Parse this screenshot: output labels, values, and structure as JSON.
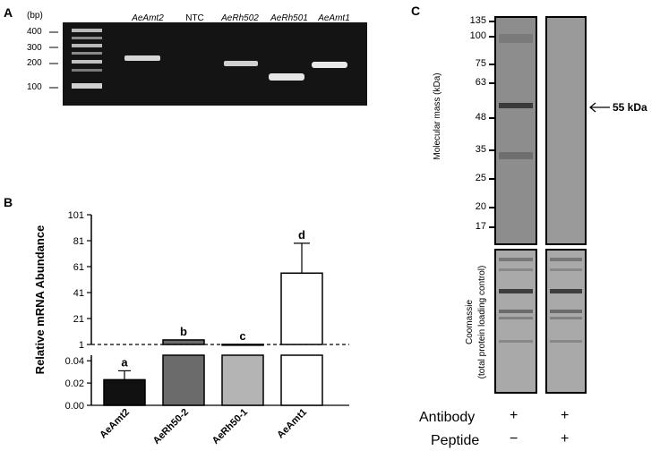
{
  "panels": {
    "a": "A",
    "b": "B",
    "c": "C"
  },
  "gel": {
    "unit": "(bp)",
    "ladder": [
      "400",
      "300",
      "200",
      "100"
    ],
    "lanes": [
      "AeAmt2",
      "NTC",
      "AeRh502",
      "AeRh501",
      "AeAmt1"
    ]
  },
  "chart_data": {
    "type": "bar",
    "categories": [
      "AeAmt2",
      "AeRh50-2",
      "AeRh50-1",
      "AeAmt1"
    ],
    "values": [
      0.023,
      4.5,
      1.1,
      56
    ],
    "errors": [
      0.008,
      0,
      0,
      23
    ],
    "letters": [
      "a",
      "b",
      "c",
      "d"
    ],
    "colors": [
      "#111111",
      "#6b6b6b",
      "#b4b4b4",
      "#ffffff"
    ],
    "ylabel": "Relative mRNA Abundance",
    "upper_axis": {
      "ylim": [
        1,
        101
      ],
      "ticks": [
        "101",
        "81",
        "61",
        "41",
        "21",
        "1"
      ]
    },
    "lower_axis": {
      "ylim": [
        0,
        0.045
      ],
      "ticks": [
        "0.04",
        "0.02",
        "0.00"
      ]
    },
    "reference_line": 1
  },
  "western": {
    "ylabel": "Molecular mass (kDa)",
    "markers": [
      "135",
      "100",
      "75",
      "63",
      "48",
      "35",
      "25",
      "20",
      "17"
    ],
    "arrow_label": "55 kDa",
    "coomassie_label_1": "Coomassie",
    "coomassie_label_2": "(total protein loading control)",
    "row_antibody": "Antibody",
    "row_peptide": "Peptide",
    "lane1": {
      "antibody": "+",
      "peptide": "−"
    },
    "lane2": {
      "antibody": "+",
      "peptide": "+"
    }
  }
}
